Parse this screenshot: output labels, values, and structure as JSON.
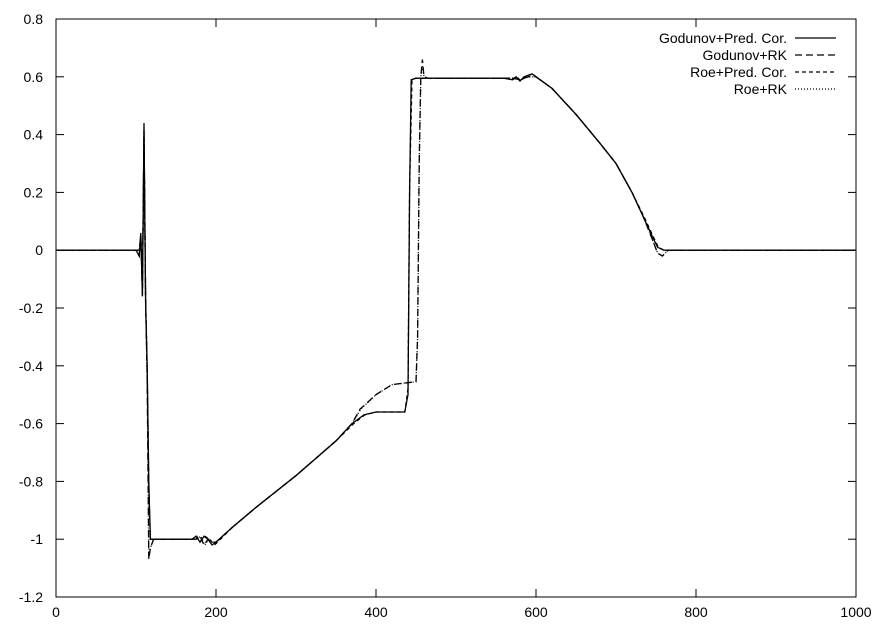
{
  "chart_data": {
    "type": "line",
    "title": "",
    "xlabel": "",
    "ylabel": "",
    "xlim": [
      0,
      1000
    ],
    "ylim": [
      -1.2,
      0.8
    ],
    "xticks": [
      "0",
      "200",
      "400",
      "600",
      "800",
      "1000"
    ],
    "yticks": [
      "0.8",
      "0.6",
      "0.4",
      "0.2",
      "0",
      "-0.2",
      "-0.4",
      "-0.6",
      "-0.8",
      "-1",
      "-1.2"
    ],
    "grid": false,
    "legend_position": "top-right",
    "series": [
      {
        "name": "Godunov+Pred. Cor.",
        "style": "solid",
        "color": "#000000",
        "points": [
          [
            0,
            0
          ],
          [
            100,
            0
          ],
          [
            104,
            -0.02
          ],
          [
            106,
            0.06
          ],
          [
            108,
            -0.16
          ],
          [
            110,
            0.44
          ],
          [
            112,
            -0.18
          ],
          [
            114,
            -0.4
          ],
          [
            116,
            -0.8
          ],
          [
            118,
            -1.0
          ],
          [
            130,
            -1.0
          ],
          [
            160,
            -1.0
          ],
          [
            170,
            -1.0
          ],
          [
            175,
            -0.99
          ],
          [
            180,
            -1.01
          ],
          [
            185,
            -0.99
          ],
          [
            190,
            -1.0
          ],
          [
            195,
            -1.02
          ],
          [
            200,
            -1.01
          ],
          [
            220,
            -0.96
          ],
          [
            250,
            -0.89
          ],
          [
            300,
            -0.78
          ],
          [
            350,
            -0.66
          ],
          [
            370,
            -0.6
          ],
          [
            385,
            -0.57
          ],
          [
            400,
            -0.56
          ],
          [
            420,
            -0.56
          ],
          [
            436,
            -0.56
          ],
          [
            440,
            -0.5
          ],
          [
            442,
            0.2
          ],
          [
            444,
            0.59
          ],
          [
            450,
            0.595
          ],
          [
            500,
            0.595
          ],
          [
            560,
            0.595
          ],
          [
            570,
            0.59
          ],
          [
            575,
            0.6
          ],
          [
            580,
            0.585
          ],
          [
            585,
            0.6
          ],
          [
            595,
            0.61
          ],
          [
            600,
            0.6
          ],
          [
            620,
            0.56
          ],
          [
            650,
            0.47
          ],
          [
            680,
            0.37
          ],
          [
            700,
            0.3
          ],
          [
            720,
            0.2
          ],
          [
            735,
            0.11
          ],
          [
            745,
            0.05
          ],
          [
            752,
            0.01
          ],
          [
            760,
            0
          ],
          [
            800,
            0
          ],
          [
            1000,
            0
          ]
        ]
      },
      {
        "name": "Godunov+RK",
        "style": "dashed",
        "color": "#000000",
        "points": [
          [
            0,
            0
          ],
          [
            100,
            0
          ],
          [
            104,
            0
          ],
          [
            106,
            0.05
          ],
          [
            108,
            -0.14
          ],
          [
            110,
            0.4
          ],
          [
            112,
            -0.16
          ],
          [
            114,
            -0.45
          ],
          [
            116,
            -1.07
          ],
          [
            118,
            -1.03
          ],
          [
            122,
            -1.0
          ],
          [
            160,
            -1.0
          ],
          [
            175,
            -1.0
          ],
          [
            180,
            -0.99
          ],
          [
            185,
            -1.02
          ],
          [
            190,
            -1.0
          ],
          [
            195,
            -1.01
          ],
          [
            200,
            -1.01
          ],
          [
            220,
            -0.96
          ],
          [
            250,
            -0.89
          ],
          [
            300,
            -0.78
          ],
          [
            350,
            -0.66
          ],
          [
            370,
            -0.6
          ],
          [
            380,
            -0.55
          ],
          [
            400,
            -0.5
          ],
          [
            420,
            -0.465
          ],
          [
            450,
            -0.455
          ],
          [
            452,
            -0.3
          ],
          [
            454,
            0.3
          ],
          [
            456,
            0.6
          ],
          [
            458,
            0.66
          ],
          [
            460,
            0.6
          ],
          [
            465,
            0.595
          ],
          [
            500,
            0.595
          ],
          [
            560,
            0.595
          ],
          [
            570,
            0.595
          ],
          [
            580,
            0.59
          ],
          [
            590,
            0.6
          ],
          [
            600,
            0.6
          ],
          [
            620,
            0.56
          ],
          [
            650,
            0.47
          ],
          [
            680,
            0.37
          ],
          [
            700,
            0.3
          ],
          [
            720,
            0.2
          ],
          [
            735,
            0.11
          ],
          [
            745,
            0.04
          ],
          [
            752,
            -0.01
          ],
          [
            758,
            -0.02
          ],
          [
            765,
            0
          ],
          [
            800,
            0
          ],
          [
            1000,
            0
          ]
        ]
      },
      {
        "name": "Roe+Pred. Cor.",
        "style": "short-dashed",
        "color": "#000000",
        "points": [
          [
            0,
            0
          ],
          [
            100,
            0
          ],
          [
            104,
            -0.02
          ],
          [
            106,
            0.06
          ],
          [
            108,
            -0.16
          ],
          [
            110,
            0.42
          ],
          [
            112,
            -0.18
          ],
          [
            114,
            -0.42
          ],
          [
            116,
            -0.82
          ],
          [
            118,
            -1.0
          ],
          [
            130,
            -1.0
          ],
          [
            170,
            -1.0
          ],
          [
            176,
            -0.99
          ],
          [
            180,
            -1.01
          ],
          [
            186,
            -0.99
          ],
          [
            192,
            -1.0
          ],
          [
            198,
            -1.02
          ],
          [
            202,
            -1.01
          ],
          [
            220,
            -0.96
          ],
          [
            250,
            -0.89
          ],
          [
            300,
            -0.78
          ],
          [
            350,
            -0.66
          ],
          [
            372,
            -0.6
          ],
          [
            386,
            -0.57
          ],
          [
            400,
            -0.56
          ],
          [
            436,
            -0.56
          ],
          [
            440,
            -0.48
          ],
          [
            442,
            0.22
          ],
          [
            445,
            0.59
          ],
          [
            450,
            0.595
          ],
          [
            560,
            0.595
          ],
          [
            571,
            0.59
          ],
          [
            576,
            0.6
          ],
          [
            581,
            0.585
          ],
          [
            586,
            0.6
          ],
          [
            596,
            0.61
          ],
          [
            600,
            0.6
          ],
          [
            620,
            0.56
          ],
          [
            650,
            0.47
          ],
          [
            680,
            0.37
          ],
          [
            700,
            0.3
          ],
          [
            720,
            0.2
          ],
          [
            736,
            0.11
          ],
          [
            746,
            0.05
          ],
          [
            753,
            0.01
          ],
          [
            760,
            0
          ],
          [
            800,
            0
          ],
          [
            1000,
            0
          ]
        ]
      },
      {
        "name": "Roe+RK",
        "style": "dotted",
        "color": "#000000",
        "points": [
          [
            0,
            0
          ],
          [
            100,
            0
          ],
          [
            104,
            0
          ],
          [
            106,
            0.05
          ],
          [
            108,
            -0.14
          ],
          [
            110,
            0.38
          ],
          [
            112,
            -0.16
          ],
          [
            114,
            -0.46
          ],
          [
            116,
            -1.06
          ],
          [
            118,
            -1.03
          ],
          [
            122,
            -1.0
          ],
          [
            175,
            -1.0
          ],
          [
            181,
            -0.99
          ],
          [
            186,
            -1.02
          ],
          [
            191,
            -1.0
          ],
          [
            196,
            -1.01
          ],
          [
            200,
            -1.01
          ],
          [
            220,
            -0.96
          ],
          [
            250,
            -0.89
          ],
          [
            300,
            -0.78
          ],
          [
            350,
            -0.66
          ],
          [
            370,
            -0.6
          ],
          [
            381,
            -0.55
          ],
          [
            400,
            -0.5
          ],
          [
            420,
            -0.465
          ],
          [
            450,
            -0.455
          ],
          [
            452,
            -0.3
          ],
          [
            454,
            0.3
          ],
          [
            456,
            0.6
          ],
          [
            458,
            0.64
          ],
          [
            460,
            0.6
          ],
          [
            465,
            0.595
          ],
          [
            560,
            0.595
          ],
          [
            571,
            0.595
          ],
          [
            581,
            0.59
          ],
          [
            591,
            0.6
          ],
          [
            600,
            0.6
          ],
          [
            620,
            0.56
          ],
          [
            650,
            0.47
          ],
          [
            680,
            0.37
          ],
          [
            700,
            0.3
          ],
          [
            720,
            0.2
          ],
          [
            735,
            0.11
          ],
          [
            745,
            0.04
          ],
          [
            752,
            -0.01
          ],
          [
            758,
            -0.02
          ],
          [
            765,
            0
          ],
          [
            800,
            0
          ],
          [
            1000,
            0
          ]
        ]
      }
    ]
  }
}
